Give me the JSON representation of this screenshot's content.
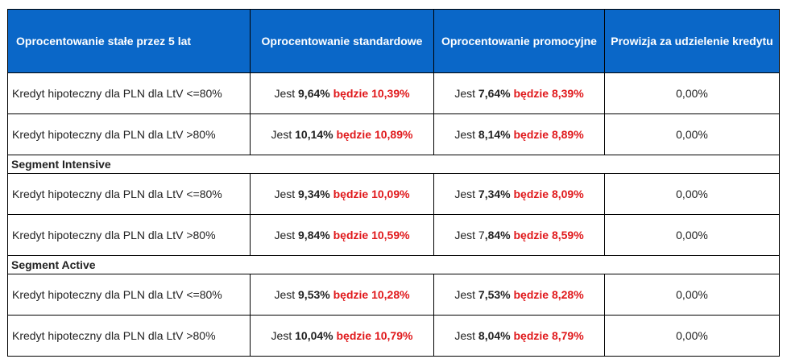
{
  "table": {
    "headers": [
      "Oprocentowanie stałe przez 5 lat",
      "Oprocentowanie standardowe",
      "Oprocentowanie promocyjne",
      "Prowizja za udzielenie kredytu"
    ],
    "sections": [
      {
        "title": "",
        "rows": [
          {
            "label": "Kredyt hipoteczny dla PLN dla LtV <=80%",
            "std_prefix": "Jest ",
            "std_current": "9,64%",
            "std_word": " będzie ",
            "std_new": "10,39%",
            "promo_prefix": "Jest ",
            "promo_current": "7,64%",
            "promo_word": " będzie ",
            "promo_new": "8,39%",
            "fee": "0,00%"
          },
          {
            "label": "Kredyt hipoteczny dla PLN dla LtV >80%",
            "std_prefix": "Jest ",
            "std_current": "10,14%",
            "std_word": " będzie ",
            "std_new": "10,89%",
            "promo_prefix": "Jest ",
            "promo_current": "8,14%",
            "promo_word": " będzie ",
            "promo_new": "8,89%",
            "fee": "0,00%"
          }
        ]
      },
      {
        "title": "Segment Intensive",
        "rows": [
          {
            "label": "Kredyt hipoteczny dla PLN dla LtV <=80%",
            "std_prefix": "Jest  ",
            "std_current": "9,34%",
            "std_word": " będzie ",
            "std_new": "10,09%",
            "promo_prefix": "Jest ",
            "promo_current": "7,34%",
            "promo_word": " będzie ",
            "promo_new": "8,09%",
            "fee": "0,00%"
          },
          {
            "label": "Kredyt hipoteczny dla PLN dla LtV >80%",
            "std_prefix": "Jest ",
            "std_current": "9,84%",
            "std_word": " będzie ",
            "std_new": "10,59%",
            "promo_prefix": "Jest 7",
            "promo_current": ",84%",
            "promo_word": " będzie ",
            "promo_new": "8,59%",
            "fee": "0,00%"
          }
        ]
      },
      {
        "title": "Segment Active",
        "rows": [
          {
            "label": "Kredyt hipoteczny dla PLN dla LtV <=80%",
            "std_prefix": "Jest ",
            "std_current": "9,53%",
            "std_word": " będzie ",
            "std_new": "10,28%",
            "promo_prefix": "Jest ",
            "promo_current": "7,53%",
            "promo_word": " będzie ",
            "promo_new": "8,28%",
            "fee": "0,00%"
          },
          {
            "label": "Kredyt hipoteczny dla PLN dla LtV >80%",
            "std_prefix": "Jest ",
            "std_current": "10,04%",
            "std_word": " będzie ",
            "std_new": "10,79%",
            "promo_prefix": "Jest ",
            "promo_current": "8,04%",
            "promo_word": " będzie ",
            "promo_new": "8,79%",
            "fee": "0,00%"
          }
        ]
      }
    ]
  },
  "colors": {
    "header_bg": "#0a67c8",
    "header_text": "#ffffff",
    "new_rate": "#e0181b",
    "text": "#222222"
  }
}
